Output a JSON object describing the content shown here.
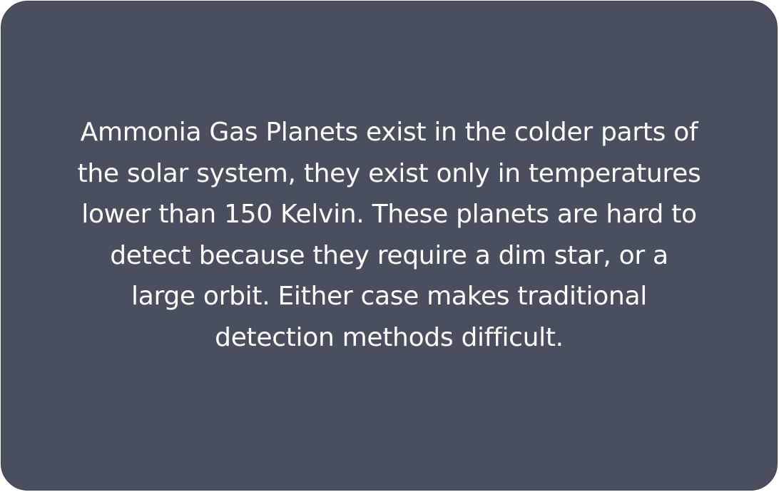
{
  "card": {
    "text": "Ammonia Gas Planets exist in the colder parts of the solar system, they exist only in temperatures lower than 150 Kelvin. These planets are hard to detect because they require a dim star, or a large orbit. Either case makes traditional detection methods difficult.",
    "background_color": "#4a4f5f",
    "text_color": "#ffffff"
  }
}
